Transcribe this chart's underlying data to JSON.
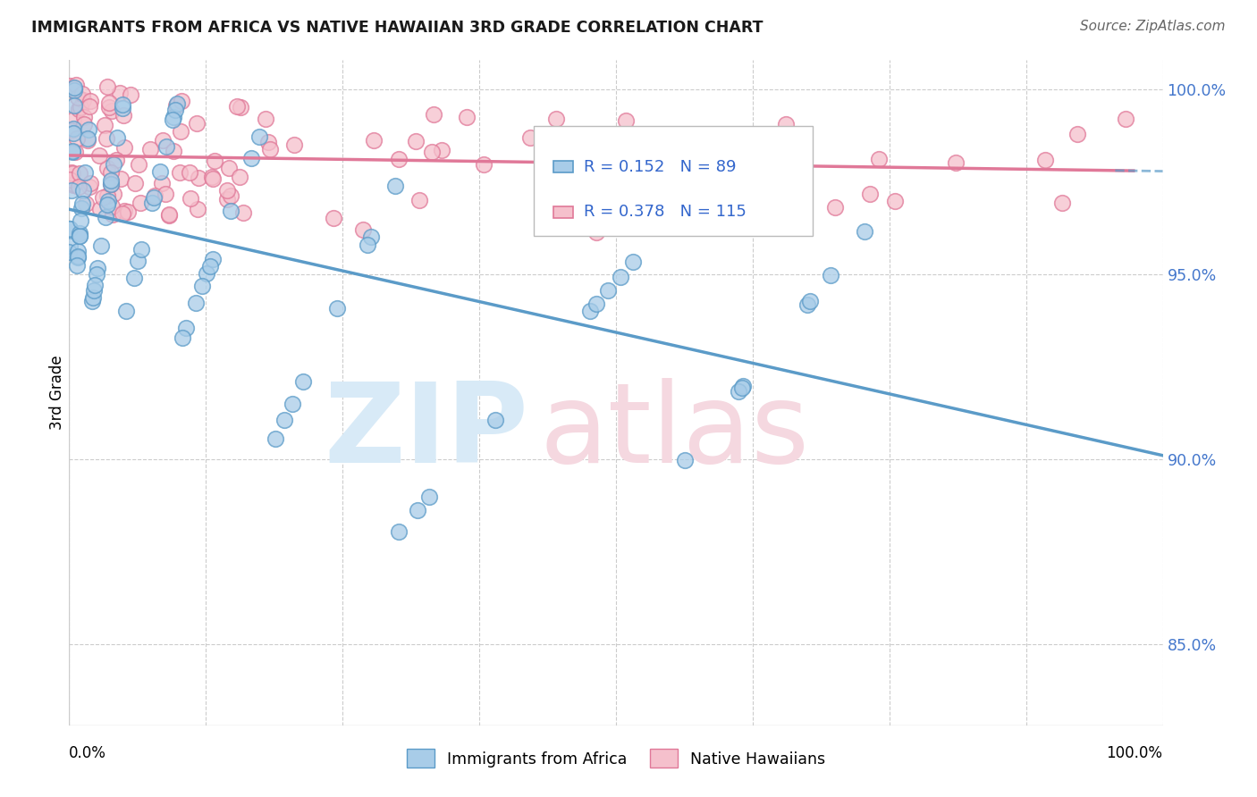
{
  "title": "IMMIGRANTS FROM AFRICA VS NATIVE HAWAIIAN 3RD GRADE CORRELATION CHART",
  "source": "Source: ZipAtlas.com",
  "ylabel": "3rd Grade",
  "ymin": 0.828,
  "ymax": 1.008,
  "xmin": 0.0,
  "xmax": 1.0,
  "yticks": [
    0.85,
    0.9,
    0.95,
    1.0
  ],
  "ytick_labels": [
    "85.0%",
    "90.0%",
    "95.0%",
    "100.0%"
  ],
  "legend_R_blue": "0.152",
  "legend_N_blue": "89",
  "legend_R_pink": "0.378",
  "legend_N_pink": "115",
  "color_blue_fill": "#a8cce8",
  "color_blue_edge": "#5b9bc8",
  "color_pink_fill": "#f5c0cc",
  "color_pink_edge": "#e07898",
  "color_blue_line": "#5b9bc8",
  "color_pink_line": "#e07898",
  "watermark_zip_color": "#d8eaf7",
  "watermark_atlas_color": "#f5d8e0"
}
